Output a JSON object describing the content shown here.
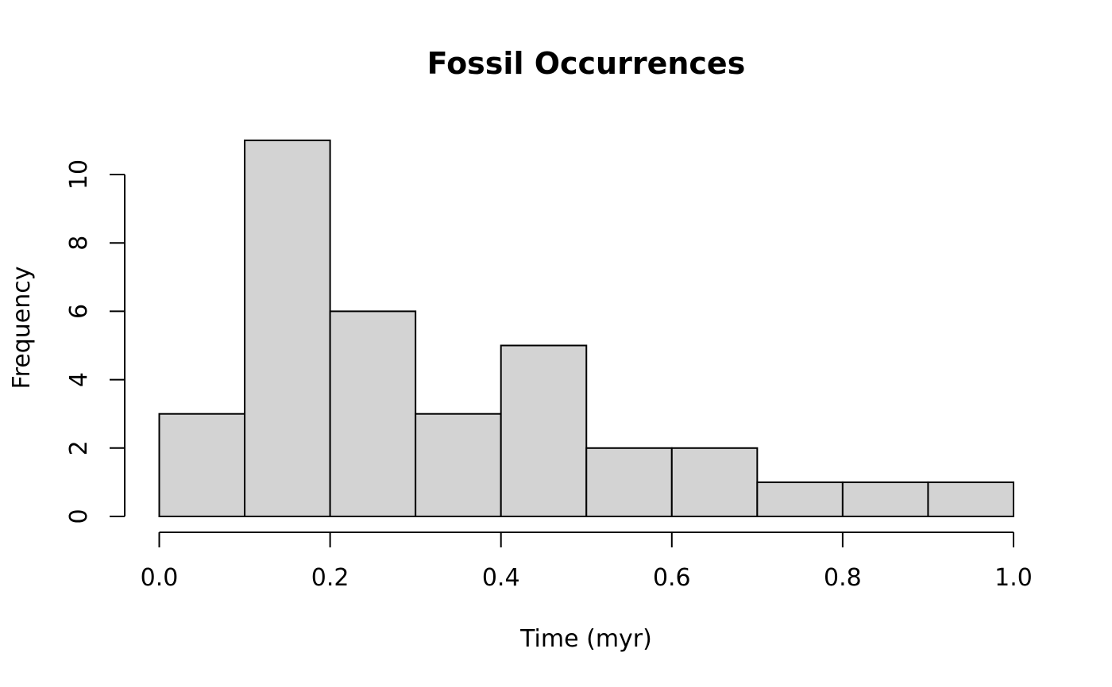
{
  "chart_data": {
    "type": "bar",
    "title": "Fossil Occurrences",
    "xlabel": "Time (myr)",
    "ylabel": "Frequency",
    "bins": [
      {
        "x0": 0.0,
        "x1": 0.1,
        "count": 3
      },
      {
        "x0": 0.1,
        "x1": 0.2,
        "count": 11
      },
      {
        "x0": 0.2,
        "x1": 0.3,
        "count": 6
      },
      {
        "x0": 0.3,
        "x1": 0.4,
        "count": 3
      },
      {
        "x0": 0.4,
        "x1": 0.5,
        "count": 5
      },
      {
        "x0": 0.5,
        "x1": 0.6,
        "count": 2
      },
      {
        "x0": 0.6,
        "x1": 0.7,
        "count": 2
      },
      {
        "x0": 0.7,
        "x1": 0.8,
        "count": 1
      },
      {
        "x0": 0.8,
        "x1": 0.9,
        "count": 1
      },
      {
        "x0": 0.9,
        "x1": 1.0,
        "count": 1
      }
    ],
    "xlim": [
      0.0,
      1.0
    ],
    "ylim": [
      0,
      11
    ],
    "xticks": [
      0.0,
      0.2,
      0.4,
      0.6,
      0.8,
      1.0
    ],
    "xtick_labels": [
      "0.0",
      "0.2",
      "0.4",
      "0.6",
      "0.8",
      "1.0"
    ],
    "yticks": [
      0,
      2,
      4,
      6,
      8,
      10
    ],
    "ytick_labels": [
      "0",
      "2",
      "4",
      "6",
      "8",
      "10"
    ],
    "grid": false,
    "bar_color": "#d3d3d3",
    "edge_color": "#000000"
  }
}
